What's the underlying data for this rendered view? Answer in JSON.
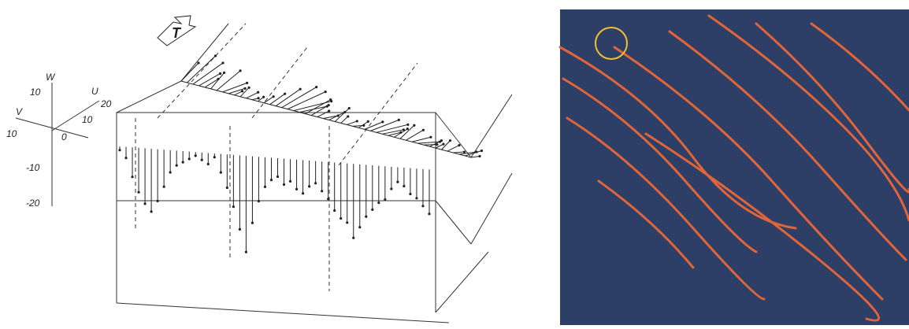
{
  "axes": {
    "w_label": "W",
    "u_label": "U",
    "v_label": "V",
    "t_label": "T",
    "w_ticks": [
      "10",
      "-10",
      "-20"
    ],
    "u_ticks": [
      "10",
      "20"
    ],
    "v_ticks": [
      "10"
    ],
    "origin_tick": "0"
  },
  "sticks": {
    "w": [
      -1,
      -3,
      -8,
      -12,
      -15,
      -17,
      -14,
      -10,
      -6,
      -4,
      -3,
      -2,
      -1,
      -2,
      -3,
      -1,
      -5,
      -9,
      -14,
      -20,
      -26,
      -18,
      -12,
      -8,
      -6,
      -5,
      -7,
      -6,
      -8,
      -9,
      -7,
      -6,
      -8,
      -10,
      -13,
      -15,
      -16,
      -20,
      -17,
      -14,
      -12,
      -10,
      -9,
      -6,
      -4,
      -5,
      -7,
      -8,
      -10,
      -12
    ],
    "u": [
      -2,
      -4,
      -6,
      -5,
      -3,
      -1,
      -4,
      -7,
      -5,
      -2,
      -1,
      -3,
      -2,
      -1,
      -2,
      -3,
      -5,
      -8,
      -10,
      -12,
      -9,
      -6,
      -4,
      -3,
      -5,
      -4,
      -2,
      -1,
      -3,
      -4,
      -2,
      -5,
      -8,
      -10,
      -7,
      -4,
      -3,
      -2,
      -4,
      -6,
      -8,
      -5,
      -3,
      -2,
      -1,
      -3,
      -4,
      -6,
      -5,
      -3
    ],
    "v": [
      8,
      12,
      10,
      6,
      4,
      7,
      9,
      5,
      3,
      2,
      4,
      3,
      1,
      2,
      3,
      5,
      8,
      10,
      9,
      6,
      4,
      7,
      5,
      3,
      2,
      4,
      6,
      3,
      2,
      1,
      3,
      4,
      6,
      5,
      3,
      2,
      4,
      6,
      5,
      3,
      2,
      1,
      3,
      2,
      4,
      3,
      1,
      2,
      3,
      1
    ]
  }
}
